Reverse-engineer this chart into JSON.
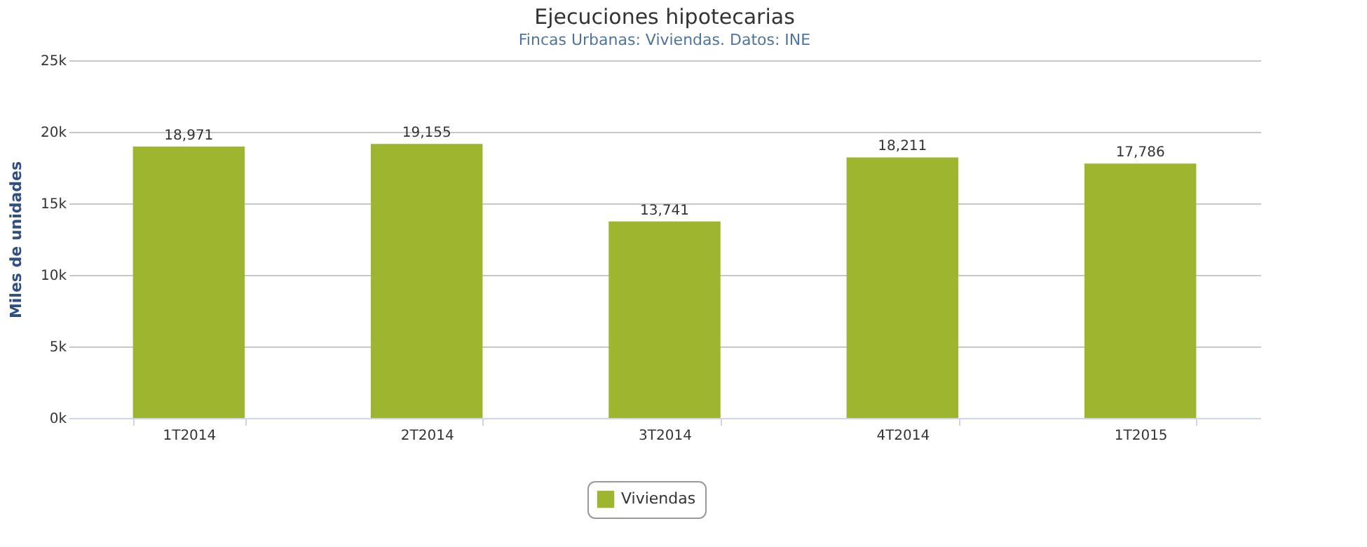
{
  "chart_data": {
    "type": "bar",
    "title": "Ejecuciones hipotecarias",
    "subtitle": "Fincas Urbanas: Viviendas. Datos: INE",
    "ylabel": "Miles de unidades",
    "categories": [
      "1T2014",
      "2T2014",
      "3T2014",
      "4T2014",
      "1T2015"
    ],
    "series": [
      {
        "name": "Viviendas",
        "color": "#9db52f",
        "values": [
          18971,
          19155,
          13741,
          18211,
          17786
        ],
        "value_labels": [
          "18,971",
          "19,155",
          "13,741",
          "18,211",
          "17,786"
        ]
      }
    ],
    "ylim": [
      0,
      25000
    ],
    "yticks": [
      {
        "value": 0,
        "label": "0k"
      },
      {
        "value": 5000,
        "label": "5k"
      },
      {
        "value": 10000,
        "label": "10k"
      },
      {
        "value": 15000,
        "label": "15k"
      },
      {
        "value": 20000,
        "label": "20k"
      },
      {
        "value": 25000,
        "label": "25k"
      }
    ],
    "grid": "y",
    "legend": "bottom"
  }
}
